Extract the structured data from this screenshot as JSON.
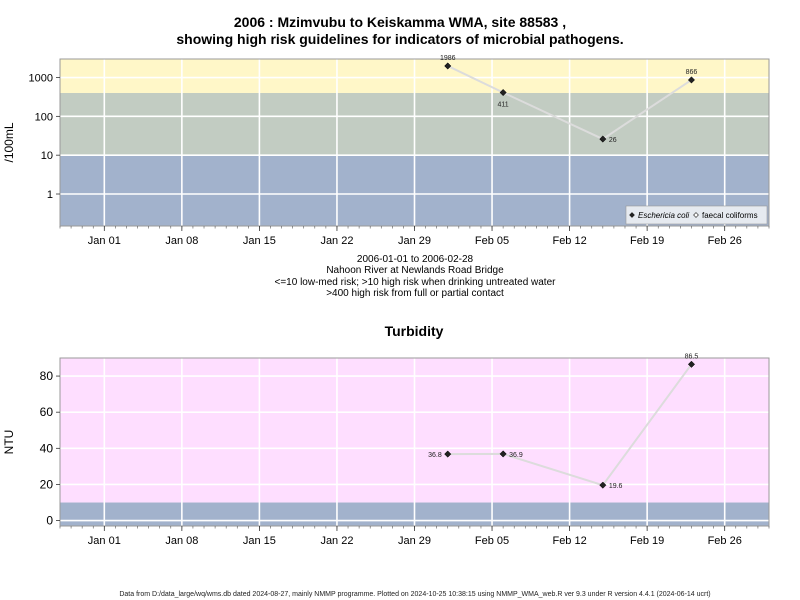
{
  "colors": {
    "band_high": "#fff7c8",
    "band_mid": "#c2ccc2",
    "band_low": "#a2b2cc",
    "turb_high": "#fedeff",
    "turb_low": "#a2b2cc",
    "line": "#dcdcdc",
    "marker": "#222222"
  },
  "chart_data": [
    {
      "type": "line",
      "title_line1": "2006 : Mzimvubu to Keiskamma WMA, site 88583 ,",
      "title_line2": "showing high risk guidelines for indicators of microbial pathogens.",
      "ylabel": "/100mL",
      "yscale": "log",
      "ylim": [
        0.15,
        3000
      ],
      "yticks": [
        {
          "v": 1,
          "label": "1"
        },
        {
          "v": 10,
          "label": "10"
        },
        {
          "v": 100,
          "label": "100"
        },
        {
          "v": 1000,
          "label": "1000"
        }
      ],
      "x_range_days": [
        "2005-12-28",
        "2006-03-02"
      ],
      "xticks": [
        {
          "date": "2006-01-01",
          "label": "Jan 01"
        },
        {
          "date": "2006-01-08",
          "label": "Jan 08"
        },
        {
          "date": "2006-01-15",
          "label": "Jan 15"
        },
        {
          "date": "2006-01-22",
          "label": "Jan 22"
        },
        {
          "date": "2006-01-29",
          "label": "Jan 29"
        },
        {
          "date": "2006-02-05",
          "label": "Feb 05"
        },
        {
          "date": "2006-02-12",
          "label": "Feb 12"
        },
        {
          "date": "2006-02-19",
          "label": "Feb 19"
        },
        {
          "date": "2006-02-26",
          "label": "Feb 26"
        }
      ],
      "bands": [
        {
          "from": 0.15,
          "to": 10,
          "color": "band_low"
        },
        {
          "from": 10,
          "to": 400,
          "color": "band_mid"
        },
        {
          "from": 400,
          "to": 3000,
          "color": "band_high"
        }
      ],
      "series": [
        {
          "name": "Eschericia coli",
          "points": [
            {
              "date": "2006-02-01",
              "y": 1986,
              "label": "1986",
              "pos": "above"
            },
            {
              "date": "2006-02-06",
              "y": 411,
              "label": "411",
              "pos": "below"
            },
            {
              "date": "2006-02-15",
              "y": 26,
              "label": "26",
              "pos": "right"
            },
            {
              "date": "2006-02-23",
              "y": 866,
              "label": "866",
              "pos": "above"
            }
          ]
        }
      ],
      "legend": {
        "position": "bottom-right",
        "entries": [
          {
            "label": "Eschericia coli",
            "marker": "filled-diamond",
            "italic": true
          },
          {
            "label": "faecal coliforms",
            "marker": "open-diamond",
            "italic": false
          }
        ]
      },
      "caption": [
        "2006-01-01 to 2006-02-28",
        "Nahoon River at Newlands Road Bridge",
        "<=10 low-med risk; >10 high risk when drinking untreated water",
        ">400 high risk from full or partial contact"
      ]
    },
    {
      "type": "line",
      "title": "Turbidity",
      "ylabel": "NTU",
      "ylim": [
        -3,
        90
      ],
      "yticks": [
        {
          "v": 0,
          "label": "0"
        },
        {
          "v": 20,
          "label": "20"
        },
        {
          "v": 40,
          "label": "40"
        },
        {
          "v": 60,
          "label": "60"
        },
        {
          "v": 80,
          "label": "80"
        }
      ],
      "x_range_days": [
        "2005-12-28",
        "2006-03-02"
      ],
      "xticks": [
        {
          "date": "2006-01-01",
          "label": "Jan 01"
        },
        {
          "date": "2006-01-08",
          "label": "Jan 08"
        },
        {
          "date": "2006-01-15",
          "label": "Jan 15"
        },
        {
          "date": "2006-01-22",
          "label": "Jan 22"
        },
        {
          "date": "2006-01-29",
          "label": "Jan 29"
        },
        {
          "date": "2006-02-05",
          "label": "Feb 05"
        },
        {
          "date": "2006-02-12",
          "label": "Feb 12"
        },
        {
          "date": "2006-02-19",
          "label": "Feb 19"
        },
        {
          "date": "2006-02-26",
          "label": "Feb 26"
        }
      ],
      "bands": [
        {
          "from": -3,
          "to": 10,
          "color": "turb_low"
        },
        {
          "from": 10,
          "to": 90,
          "color": "turb_high"
        }
      ],
      "series": [
        {
          "points": [
            {
              "date": "2006-02-01",
              "y": 36.8,
              "label": "36.8",
              "pos": "left"
            },
            {
              "date": "2006-02-06",
              "y": 36.9,
              "label": "36.9",
              "pos": "right"
            },
            {
              "date": "2006-02-15",
              "y": 19.6,
              "label": "19.6",
              "pos": "right"
            },
            {
              "date": "2006-02-23",
              "y": 86.5,
              "label": "86.5",
              "pos": "above"
            }
          ]
        }
      ]
    }
  ],
  "footer": "Data from D:/data_large/wq/wms.db dated 2024-08-27, mainly NMMP programme. Plotted on 2024-10-25 10:38:15 using NMMP_WMA_web.R ver 9.3 under R version 4.4.1 (2024-06-14 ucrt)"
}
